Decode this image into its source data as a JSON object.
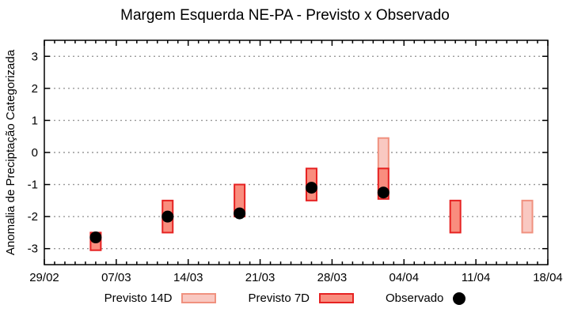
{
  "chart_data": {
    "type": "bar",
    "title": "Margem Esquerda NE-PA - Previsto x Observado",
    "ylabel": "Anomalia de Preciptação Categorizada",
    "ylim": [
      -3.5,
      3.5
    ],
    "yticks": [
      3,
      2,
      1,
      0,
      -1,
      -2,
      -3
    ],
    "x_axis": {
      "span_days": 49,
      "minor_tick_every_days": 1,
      "major_ticks": [
        {
          "day": 0,
          "label": "29/02"
        },
        {
          "day": 7,
          "label": "07/03"
        },
        {
          "day": 14,
          "label": "14/03"
        },
        {
          "day": 21,
          "label": "21/03"
        },
        {
          "day": 28,
          "label": "28/03"
        },
        {
          "day": 35,
          "label": "04/04"
        },
        {
          "day": 42,
          "label": "11/04"
        },
        {
          "day": 49,
          "label": "18/04"
        }
      ]
    },
    "grid": {
      "horizontal_dotted": true,
      "color": "#999999"
    },
    "colors": {
      "prev14_fill": "#f9c8c1",
      "prev14_stroke": "#f0917f",
      "prev7_fill": "#f98d7e",
      "prev7_stroke": "#e62222",
      "observed": "#000000",
      "axis": "#000000"
    },
    "series": [
      {
        "name": "Previsto 14D",
        "type": "range_bar",
        "fill": "#f9c8c1",
        "stroke": "#f0917f",
        "points": [
          {
            "date": "02/04",
            "day": 33,
            "high": 0.45,
            "low": -0.5
          },
          {
            "date": "16/04",
            "day": 47,
            "high": -1.5,
            "low": -2.5
          }
        ]
      },
      {
        "name": "Previsto 7D",
        "type": "range_bar",
        "fill": "#f98d7e",
        "stroke": "#e62222",
        "points": [
          {
            "date": "05/03",
            "day": 5,
            "high": -2.5,
            "low": -3.05
          },
          {
            "date": "12/03",
            "day": 12,
            "high": -1.5,
            "low": -2.5
          },
          {
            "date": "19/03",
            "day": 19,
            "high": -1.0,
            "low": -2.0
          },
          {
            "date": "26/03",
            "day": 26,
            "high": -0.5,
            "low": -1.5
          },
          {
            "date": "02/04",
            "day": 33,
            "high": -0.5,
            "low": -1.45
          },
          {
            "date": "09/04",
            "day": 40,
            "high": -1.5,
            "low": -2.5
          }
        ]
      },
      {
        "name": "Observado",
        "type": "scatter",
        "color": "#000000",
        "points": [
          {
            "date": "05/03",
            "day": 5,
            "value": -2.65
          },
          {
            "date": "12/03",
            "day": 12,
            "value": -2.0
          },
          {
            "date": "19/03",
            "day": 19,
            "value": -1.9
          },
          {
            "date": "26/03",
            "day": 26,
            "value": -1.1
          },
          {
            "date": "02/04",
            "day": 33,
            "value": -1.25
          }
        ]
      }
    ],
    "legend": [
      {
        "label": "Previsto 14D",
        "marker": "box-light"
      },
      {
        "label": "Previsto 7D",
        "marker": "box-dark"
      },
      {
        "label": "Observado",
        "marker": "dot"
      }
    ]
  }
}
